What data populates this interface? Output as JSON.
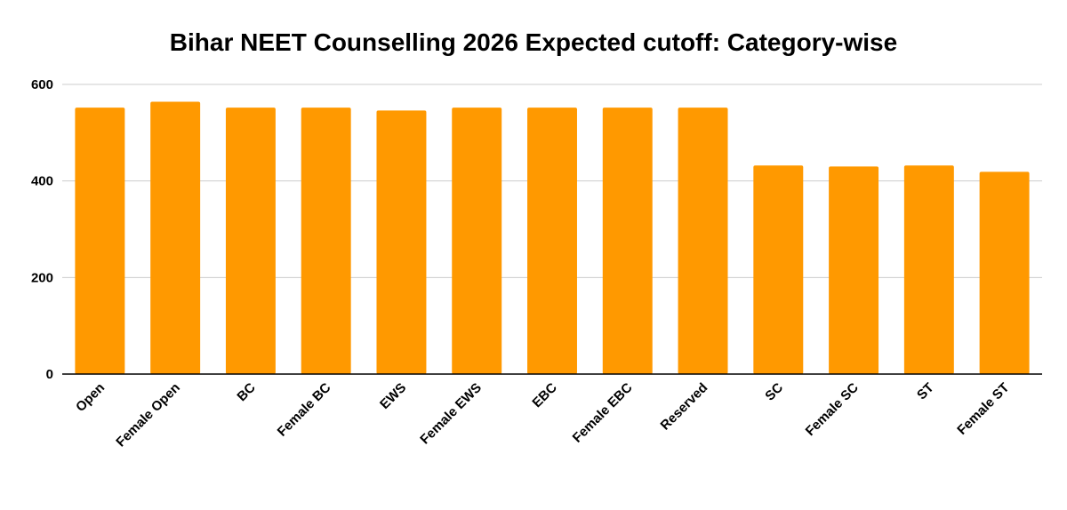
{
  "chart_data": {
    "type": "bar",
    "title": "Bihar NEET Counselling 2026 Expected cutoff: Category-wise",
    "xlabel": "",
    "ylabel": "",
    "categories": [
      "Open",
      "Female Open",
      "BC",
      "Female BC",
      "EWS",
      "Female EWS",
      "EBC",
      "Female EBC",
      "Reserved",
      "SC",
      "Female SC",
      "ST",
      "Female ST"
    ],
    "values": [
      552,
      564,
      552,
      552,
      546,
      552,
      552,
      552,
      552,
      432,
      430,
      432,
      419
    ],
    "ylim": [
      0,
      600
    ],
    "yticks": [
      0,
      200,
      400,
      600
    ],
    "grid": true,
    "legend": "none",
    "bar_color": "#ff9900",
    "grid_color": "#cccccc",
    "axis_color": "#000000"
  }
}
